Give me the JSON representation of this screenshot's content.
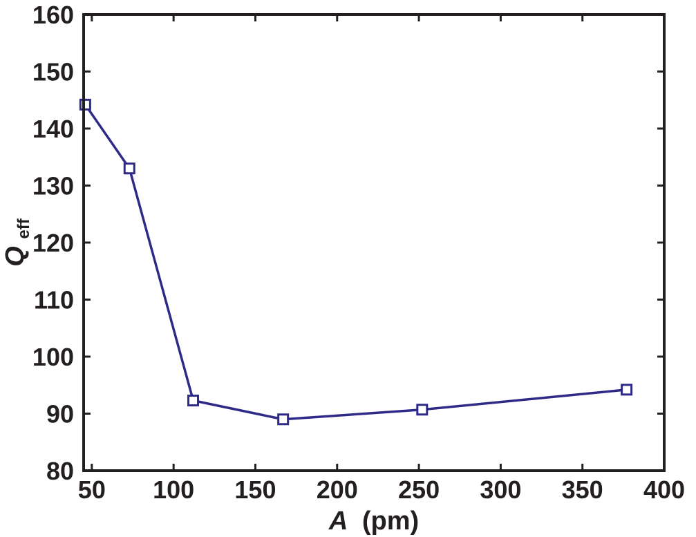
{
  "chart_data": {
    "type": "line",
    "title": "",
    "xlabel_symbol": "A",
    "xlabel_unit": "(pm)",
    "ylabel_symbol": "Q",
    "ylabel_subscript": "eff",
    "xlim": [
      45,
      400
    ],
    "ylim": [
      80,
      160
    ],
    "xticks": [
      50,
      100,
      150,
      200,
      250,
      300,
      350,
      400
    ],
    "yticks": [
      80,
      90,
      100,
      110,
      120,
      130,
      140,
      150,
      160
    ],
    "grid": false,
    "legend": "none",
    "series": [
      {
        "marker": "square",
        "color": "#2e2a87",
        "x": [
          46,
          73,
          112,
          167,
          252,
          377
        ],
        "y": [
          144.2,
          133,
          92.3,
          89,
          90.7,
          94.2
        ]
      }
    ]
  }
}
